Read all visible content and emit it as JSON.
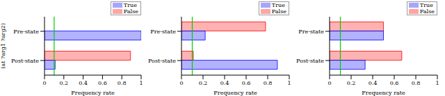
{
  "chart_data": [
    {
      "type": "bar",
      "orientation": "horizontal",
      "categories": [
        "Pre-state",
        "Post-state"
      ],
      "series": [
        {
          "name": "True",
          "color": "#0000ff",
          "values": [
            1.0,
            0.11
          ]
        },
        {
          "name": "False",
          "color": "#ff0000",
          "values": [
            0,
            0.89
          ]
        }
      ],
      "xlim": [
        0,
        1
      ],
      "xticks": [
        0,
        0.2,
        0.4,
        0.6,
        0.8,
        1
      ],
      "x_label": "Frequency rate",
      "y_label": "(at ?arg1 ?arg2)",
      "reference_line": 0.1,
      "legend": "top-right"
    },
    {
      "type": "bar",
      "orientation": "horizontal",
      "categories": [
        "Pre-state",
        "Post-state"
      ],
      "series": [
        {
          "name": "True",
          "color": "#0000ff",
          "values": [
            0.22,
            0.89
          ]
        },
        {
          "name": "False",
          "color": "#ff0000",
          "values": [
            0.78,
            0.11
          ]
        }
      ],
      "xlim": [
        0,
        1
      ],
      "xticks": [
        0,
        0.2,
        0.4,
        0.6,
        0.8,
        1
      ],
      "x_label": "Frequency rate",
      "reference_line": 0.1,
      "legend": "top-right"
    },
    {
      "type": "bar",
      "orientation": "horizontal",
      "categories": [
        "Pre-state",
        "Post-state"
      ],
      "series": [
        {
          "name": "True",
          "color": "#0000ff",
          "values": [
            0.5,
            0.33
          ]
        },
        {
          "name": "False",
          "color": "#ff0000",
          "values": [
            0.5,
            0.67
          ]
        }
      ],
      "xlim": [
        0,
        1
      ],
      "xticks": [
        0,
        0.2,
        0.4,
        0.6,
        0.8,
        1
      ],
      "x_label": "Frequency rate",
      "reference_line": 0.1,
      "legend": "top-right"
    }
  ]
}
